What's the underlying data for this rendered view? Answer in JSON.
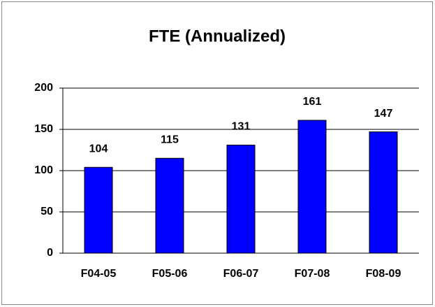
{
  "chart_data": {
    "type": "bar",
    "title": "FTE (Annualized)",
    "categories": [
      "F04-05",
      "F05-06",
      "F06-07",
      "F07-08",
      "F08-09"
    ],
    "values": [
      104,
      115,
      131,
      161,
      147
    ],
    "color": "#0000ff",
    "ylim": [
      0,
      200
    ],
    "yticks": [
      0,
      50,
      100,
      150,
      200
    ],
    "grid": true
  }
}
